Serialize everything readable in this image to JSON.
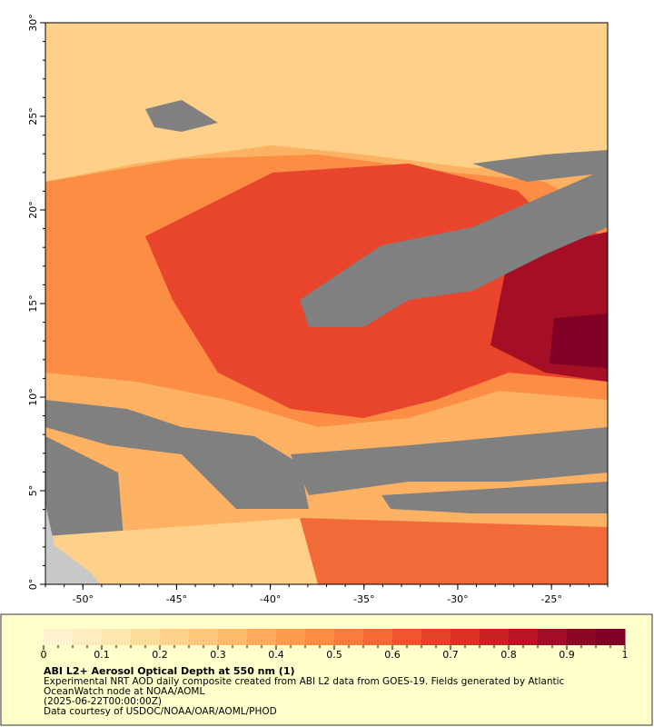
{
  "chart_data": {
    "type": "map",
    "xlim": [
      -52,
      -22
    ],
    "ylim": [
      0,
      30
    ],
    "xticks": [
      {
        "value": -50,
        "label": "-50°"
      },
      {
        "value": -45,
        "label": "-45°"
      },
      {
        "value": -40,
        "label": "-40°"
      },
      {
        "value": -35,
        "label": "-35°"
      },
      {
        "value": -30,
        "label": "-30°"
      },
      {
        "value": -25,
        "label": "-25°"
      }
    ],
    "yticks": [
      {
        "value": 0,
        "label": "0°"
      },
      {
        "value": 5,
        "label": "5°"
      },
      {
        "value": 10,
        "label": "10°"
      },
      {
        "value": 15,
        "label": "15°"
      },
      {
        "value": 20,
        "label": "20°"
      },
      {
        "value": 25,
        "label": "25°"
      },
      {
        "value": 30,
        "label": "30°"
      }
    ],
    "colorbar": {
      "lim": [
        0,
        1
      ],
      "ticks": [
        0,
        0.1,
        0.2,
        0.3,
        0.4,
        0.5,
        0.6,
        0.7,
        0.8,
        0.9,
        1
      ],
      "colors": [
        "#fff3cf",
        "#ffedbd",
        "#fee6ac",
        "#fedd9c",
        "#fed28b",
        "#fec67b",
        "#feb96b",
        "#fdab5d",
        "#fd9c51",
        "#fc8c46",
        "#fb7a3d",
        "#f66835",
        "#ef552e",
        "#e64229",
        "#d93124",
        "#ca2222",
        "#b81524",
        "#a30c26",
        "#8d0626",
        "#800026"
      ]
    },
    "title": "ABI L2+ Aerosol Optical Depth at 550 nm (1)",
    "notes": [
      "Experimental NRT AOD daily composite created from ABI L2 data from GOES-19. Fields generated by Atlantic",
      "OceanWatch node at NOAA/AOML",
      "(2025-06-22T00:00:00Z)",
      "Data courtesy of USDOC/NOAA/OAR/AOML/PHOD"
    ]
  }
}
